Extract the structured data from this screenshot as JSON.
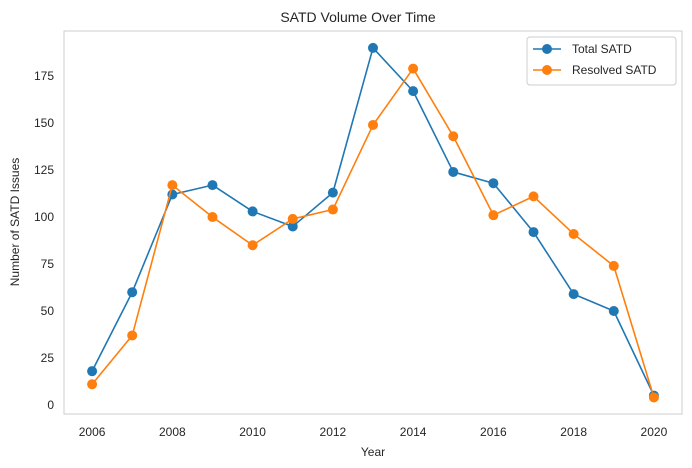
{
  "chart_data": {
    "type": "line",
    "title": "SATD Volume Over Time",
    "xlabel": "Year",
    "ylabel": "Number of SATD Issues",
    "x": [
      2006,
      2007,
      2008,
      2009,
      2010,
      2011,
      2012,
      2013,
      2014,
      2015,
      2016,
      2017,
      2018,
      2019,
      2020
    ],
    "xticks": [
      2006,
      2008,
      2010,
      2012,
      2014,
      2016,
      2018,
      2020
    ],
    "xlim": [
      2005.3,
      2020.7
    ],
    "yticks": [
      0,
      25,
      50,
      75,
      100,
      125,
      150,
      175
    ],
    "ylim": [
      -4.8,
      199
    ],
    "grid": false,
    "legend_position": "top-right",
    "series": [
      {
        "name": "Total SATD",
        "color": "#1f77b4",
        "values": [
          18,
          60,
          112,
          117,
          103,
          95,
          113,
          190,
          167,
          124,
          118,
          92,
          59,
          50,
          5
        ]
      },
      {
        "name": "Resolved SATD",
        "color": "#ff7f0e",
        "values": [
          11,
          37,
          117,
          100,
          85,
          99,
          104,
          149,
          179,
          143,
          101,
          111,
          91,
          74,
          4
        ]
      }
    ]
  }
}
